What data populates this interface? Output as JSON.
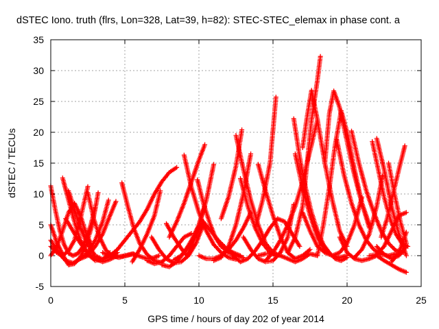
{
  "chart_data": {
    "type": "scatter",
    "title": "dSTEC Iono. truth (flrs, Lon=328, Lat=39, h=82): STEC-STEC_elemax in phase cont. a",
    "xlabel": "GPS time / hours of day 202 of year 2014",
    "ylabel": "dSTEC  / TECUs",
    "xlim": [
      0,
      25
    ],
    "ylim": [
      -5,
      35
    ],
    "xticks": [
      "0",
      "5",
      "10",
      "15",
      "20",
      "25"
    ],
    "yticks": [
      "-5",
      "0",
      "5",
      "10",
      "15",
      "20",
      "25",
      "30",
      "35"
    ],
    "grid": true,
    "marker": "+",
    "color": "#ff0000",
    "series": [
      {
        "x": [
          0.0,
          0.3,
          0.6,
          0.9,
          1.2,
          1.5,
          1.8,
          2.1,
          2.4,
          2.7,
          3.0
        ],
        "y": [
          11.3,
          7.5,
          4.2,
          1.8,
          0.4,
          0.0,
          0.3,
          1.2,
          2.8,
          5.0,
          7.8
        ]
      },
      {
        "x": [
          0.0,
          0.4,
          0.8,
          1.2,
          1.6,
          2.0,
          2.4,
          2.8,
          3.2
        ],
        "y": [
          5.0,
          2.2,
          0.2,
          -1.5,
          -1.3,
          -0.2,
          1.8,
          5.0,
          10.2
        ]
      },
      {
        "x": [
          0.0,
          0.5,
          1.0,
          1.5,
          2.0,
          2.5,
          3.0,
          3.5,
          3.9
        ],
        "y": [
          2.5,
          0.5,
          -0.8,
          -1.2,
          -0.5,
          0.5,
          2.5,
          5.5,
          9.0
        ]
      },
      {
        "x": [
          0.0,
          0.4,
          0.8,
          1.2,
          1.6,
          2.0,
          2.5
        ],
        "y": [
          1.5,
          0.5,
          0.0,
          0.8,
          2.5,
          6.0,
          11.2
        ]
      },
      {
        "x": [
          0.0,
          0.4,
          0.8,
          1.2,
          1.6,
          2.0,
          2.4,
          2.8
        ],
        "y": [
          0.0,
          1.5,
          4.0,
          7.0,
          8.5,
          6.5,
          3.5,
          1.5
        ]
      },
      {
        "x": [
          0.8,
          1.2,
          1.6,
          2.0,
          2.5,
          3.0,
          3.5,
          4.0
        ],
        "y": [
          12.6,
          9.0,
          5.5,
          2.5,
          0.2,
          -0.8,
          -0.6,
          0.5
        ]
      },
      {
        "x": [
          1.2,
          1.6,
          2.0,
          2.5,
          3.0,
          3.5,
          4.0,
          4.5
        ],
        "y": [
          10.5,
          7.5,
          4.5,
          1.8,
          0.0,
          -0.6,
          -0.2,
          0.5
        ]
      },
      {
        "x": [
          1.0,
          1.5,
          2.0,
          2.5,
          3.0,
          3.5,
          4.0,
          4.5
        ],
        "y": [
          6.0,
          4.0,
          2.0,
          0.5,
          -0.5,
          -1.0,
          -0.6,
          0.0
        ]
      },
      {
        "x": [
          2.0,
          2.5,
          3.0,
          3.5,
          4.0,
          4.4
        ],
        "y": [
          -0.5,
          0.0,
          1.5,
          3.5,
          6.5,
          8.8
        ]
      },
      {
        "x": [
          2.5,
          2.9,
          3.3,
          3.7,
          4.1,
          4.6,
          5.1,
          5.6
        ],
        "y": [
          10.2,
          6.0,
          3.0,
          1.0,
          0.0,
          -0.3,
          0.0,
          0.3
        ]
      },
      {
        "x": [
          3.5,
          4.0,
          4.5,
          5.0,
          5.5,
          6.0,
          6.5,
          7.0,
          7.3
        ],
        "y": [
          0.5,
          0.0,
          -0.2,
          0.0,
          0.3,
          -0.1,
          -0.5,
          -0.3,
          0.0
        ]
      },
      {
        "x": [
          4.8,
          5.2,
          5.6,
          6.0,
          6.5,
          7.0,
          7.5
        ],
        "y": [
          11.8,
          8.0,
          4.5,
          2.0,
          0.2,
          -0.8,
          -1.2
        ]
      },
      {
        "x": [
          5.5,
          6.0,
          6.5,
          7.0,
          7.4
        ],
        "y": [
          -1.0,
          1.0,
          3.5,
          6.5,
          10.5
        ]
      },
      {
        "x": [
          4.0,
          4.5,
          5.0,
          5.5,
          6.0,
          6.5,
          7.0,
          7.5,
          8.0,
          8.5
        ],
        "y": [
          0.0,
          1.0,
          2.5,
          4.0,
          5.5,
          7.5,
          10.0,
          12.0,
          13.5,
          14.3
        ]
      },
      {
        "x": [
          6.5,
          7.0,
          7.5,
          8.0,
          8.5,
          9.0,
          9.5
        ],
        "y": [
          -0.8,
          -1.3,
          -1.0,
          0.0,
          1.5,
          3.0,
          3.6
        ]
      },
      {
        "x": [
          6.8,
          7.3,
          7.8,
          8.3,
          8.8,
          9.3,
          9.8,
          10.3
        ],
        "y": [
          3.0,
          1.0,
          -0.5,
          -1.2,
          -1.0,
          0.0,
          2.0,
          5.0
        ]
      },
      {
        "x": [
          7.5,
          8.0,
          8.5,
          9.0,
          9.5,
          10.0,
          10.5,
          11.0
        ],
        "y": [
          -1.5,
          -1.8,
          -1.0,
          0.5,
          2.5,
          5.0,
          9.0,
          14.8
        ]
      },
      {
        "x": [
          7.8,
          8.3,
          8.8,
          9.2,
          9.6,
          10.0,
          10.4
        ],
        "y": [
          5.2,
          3.0,
          1.2,
          0.0,
          2.0,
          5.0,
          8.0
        ]
      },
      {
        "x": [
          8.3,
          8.8,
          9.3,
          9.8,
          10.3,
          10.8,
          11.3,
          11.8,
          12.3,
          12.8
        ],
        "y": [
          -0.7,
          0.0,
          1.5,
          3.5,
          5.5,
          4.0,
          2.5,
          1.3,
          0.5,
          0.0
        ]
      },
      {
        "x": [
          8.0,
          8.5,
          9.0,
          9.5,
          10.0,
          10.4
        ],
        "y": [
          3.0,
          5.5,
          8.5,
          12.0,
          15.5,
          18.0
        ]
      },
      {
        "x": [
          9.0,
          9.5,
          10.0,
          10.5,
          11.0,
          11.5,
          12.0,
          12.5
        ],
        "y": [
          16.3,
          11.0,
          7.0,
          4.0,
          1.8,
          0.5,
          -0.3,
          -0.6
        ]
      },
      {
        "x": [
          9.9,
          10.3,
          10.7,
          11.1,
          11.5,
          12.0,
          12.5,
          13.0
        ],
        "y": [
          12.3,
          8.5,
          5.5,
          3.0,
          1.5,
          0.5,
          0.0,
          -0.3
        ]
      },
      {
        "x": [
          10.0,
          10.5,
          11.0,
          11.5,
          12.0,
          12.5,
          13.0,
          13.5
        ],
        "y": [
          0.0,
          -0.5,
          -0.5,
          0.0,
          1.0,
          2.5,
          4.5,
          7.0
        ]
      },
      {
        "x": [
          11.0,
          11.5,
          12.0,
          12.5,
          13.0,
          13.5
        ],
        "y": [
          -0.8,
          -0.3,
          1.5,
          5.0,
          10.0,
          16.5
        ]
      },
      {
        "x": [
          11.5,
          12.0,
          12.5,
          12.9
        ],
        "y": [
          6.0,
          9.5,
          14.5,
          20.4
        ]
      },
      {
        "x": [
          12.5,
          13.0,
          13.5,
          14.0,
          14.5,
          15.0,
          15.5
        ],
        "y": [
          19.5,
          14.0,
          9.0,
          5.0,
          2.0,
          0.5,
          0.0
        ]
      },
      {
        "x": [
          12.8,
          13.3,
          13.8,
          14.3,
          14.8,
          15.3
        ],
        "y": [
          12.5,
          8.0,
          4.5,
          2.0,
          0.5,
          0.0
        ]
      },
      {
        "x": [
          12.3,
          12.8,
          13.3,
          13.8,
          14.3,
          14.8,
          15.3,
          15.8,
          16.3,
          16.8
        ],
        "y": [
          0.0,
          -1.0,
          -0.5,
          0.8,
          2.5,
          4.5,
          6.0,
          5.5,
          3.5,
          1.5
        ]
      },
      {
        "x": [
          13.0,
          13.5,
          14.0,
          14.5,
          15.0,
          15.5,
          16.0,
          16.4
        ],
        "y": [
          3.0,
          1.0,
          -0.5,
          -1.0,
          -0.8,
          0.5,
          3.0,
          8.3
        ]
      },
      {
        "x": [
          14.0,
          14.5,
          15.0,
          15.5,
          16.0,
          16.5,
          17.0,
          17.5,
          18.0
        ],
        "y": [
          0.0,
          0.3,
          0.3,
          0.0,
          -0.5,
          -1.0,
          -0.5,
          0.3,
          0.0
        ]
      },
      {
        "x": [
          14.0,
          14.5,
          15.0,
          15.5,
          16.0,
          16.5,
          17.0,
          17.5
        ],
        "y": [
          14.8,
          10.5,
          6.5,
          3.0,
          0.5,
          -0.5,
          0.0,
          1.0
        ]
      },
      {
        "x": [
          13.8,
          14.3,
          14.8,
          15.2
        ],
        "y": [
          4.5,
          9.0,
          15.0,
          25.7
        ]
      },
      {
        "x": [
          14.5,
          15.0,
          15.5,
          16.0,
          16.5,
          17.0,
          17.5,
          18.0
        ],
        "y": [
          -0.8,
          0.5,
          2.5,
          5.0,
          8.0,
          12.0,
          17.0,
          22.0
        ]
      },
      {
        "x": [
          16.5,
          17.0,
          17.5,
          18.0,
          18.5,
          19.0,
          19.5,
          20.0
        ],
        "y": [
          16.5,
          11.0,
          6.5,
          3.0,
          1.0,
          0.0,
          -0.3,
          0.0
        ]
      },
      {
        "x": [
          16.4,
          16.8,
          17.2,
          17.6,
          18.0,
          18.4,
          18.8,
          19.2,
          19.6,
          20.0
        ],
        "y": [
          22.2,
          16.0,
          11.0,
          7.0,
          4.0,
          1.8,
          0.5,
          -0.5,
          -0.8,
          -0.3
        ]
      },
      {
        "x": [
          16.0,
          16.5,
          17.0,
          17.3,
          17.6,
          18.0,
          18.2
        ],
        "y": [
          0.5,
          3.0,
          8.0,
          15.0,
          22.0,
          28.5,
          32.3
        ]
      },
      {
        "x": [
          17.0,
          17.3,
          17.6,
          18.0,
          18.5,
          19.0,
          19.5,
          20.0
        ],
        "y": [
          17.5,
          22.5,
          26.8,
          22.0,
          15.0,
          9.0,
          4.0,
          1.5
        ]
      },
      {
        "x": [
          17.0,
          17.5,
          18.0,
          18.5,
          19.0,
          19.5,
          20.0,
          20.5,
          21.0
        ],
        "y": [
          7.0,
          4.0,
          1.5,
          0.5,
          0.0,
          0.5,
          2.0,
          5.0,
          9.5
        ]
      },
      {
        "x": [
          18.0,
          18.4,
          18.8,
          19.2,
          19.6,
          20.0,
          20.5,
          21.0,
          21.5
        ],
        "y": [
          0.0,
          5.0,
          11.0,
          18.0,
          23.5,
          20.0,
          14.0,
          8.5,
          4.5
        ]
      },
      {
        "x": [
          18.5,
          18.8,
          19.1,
          19.5,
          20.0,
          20.5,
          21.0,
          21.5
        ],
        "y": [
          15.0,
          23.0,
          26.7,
          24.0,
          18.5,
          13.0,
          8.5,
          5.0
        ]
      },
      {
        "x": [
          19.3,
          19.8,
          20.3,
          20.8,
          21.3,
          21.8,
          22.3,
          22.8,
          23.3
        ],
        "y": [
          18.8,
          13.0,
          8.5,
          5.0,
          2.5,
          1.0,
          0.2,
          0.0,
          0.3
        ]
      },
      {
        "x": [
          19.5,
          20.0,
          20.5,
          21.0,
          21.5,
          22.0,
          22.5,
          23.0,
          23.5,
          24.0
        ],
        "y": [
          3.0,
          0.5,
          -0.5,
          -0.8,
          -0.5,
          0.0,
          -0.8,
          -1.5,
          -2.2,
          -2.7
        ]
      },
      {
        "x": [
          20.3,
          20.8,
          21.3,
          21.8,
          22.3,
          22.8,
          23.3,
          23.8
        ],
        "y": [
          20.2,
          15.0,
          10.5,
          7.0,
          4.0,
          2.0,
          0.8,
          0.5
        ]
      },
      {
        "x": [
          20.5,
          21.0,
          21.5,
          22.0,
          22.4
        ],
        "y": [
          -0.3,
          1.0,
          3.5,
          8.0,
          13.0
        ]
      },
      {
        "x": [
          21.5,
          22.0,
          22.5,
          23.0,
          23.5,
          24.0
        ],
        "y": [
          0.0,
          0.2,
          1.5,
          4.0,
          6.5,
          7.0
        ]
      },
      {
        "x": [
          21.7,
          22.1,
          22.5,
          22.9,
          23.3,
          23.7,
          24.1
        ],
        "y": [
          18.5,
          14.0,
          9.5,
          6.0,
          3.5,
          2.0,
          1.5
        ]
      },
      {
        "x": [
          22.0,
          22.5,
          23.0,
          23.5,
          24.0
        ],
        "y": [
          19.0,
          14.0,
          8.0,
          3.5,
          0.0
        ]
      },
      {
        "x": [
          22.8,
          23.2,
          23.6,
          24.0
        ],
        "y": [
          15.0,
          10.0,
          5.5,
          2.0
        ]
      },
      {
        "x": [
          22.3,
          22.7,
          23.1,
          23.5,
          23.9
        ],
        "y": [
          3.0,
          6.0,
          10.0,
          14.0,
          17.8
        ]
      },
      {
        "x": [
          22.0,
          22.5,
          23.0,
          23.5,
          24.0
        ],
        "y": [
          1.5,
          0.2,
          -0.5,
          0.0,
          1.5
        ]
      },
      {
        "x": [
          23.0,
          23.5,
          24.0
        ],
        "y": [
          -1.0,
          0.5,
          3.8
        ]
      }
    ]
  }
}
